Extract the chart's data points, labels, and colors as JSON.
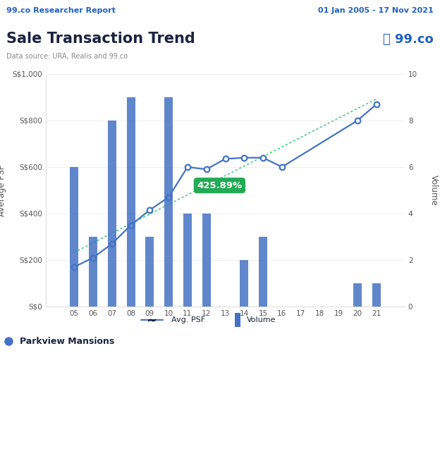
{
  "years": [
    5,
    6,
    7,
    8,
    9,
    10,
    11,
    12,
    13,
    14,
    15,
    16,
    17,
    18,
    19,
    20,
    21
  ],
  "avg_psf": [
    170,
    210,
    270,
    350,
    415,
    470,
    600,
    590,
    635,
    640,
    640,
    600,
    null,
    null,
    null,
    800,
    870
  ],
  "volume": [
    6,
    3,
    8,
    9,
    3,
    9,
    4,
    4,
    0,
    2,
    3,
    0,
    0,
    0,
    0,
    1,
    1
  ],
  "header_bg": "#ddeaf7",
  "header_text_left": "99.co Researcher Report",
  "header_text_right": "01 Jan 2005 - 17 Nov 2021",
  "header_color": "#2060C0",
  "title": "Sale Transaction Trend",
  "subtitle": "Data source: URA, Realis and 99.co",
  "bar_color": "#4472C4",
  "line_color": "#4472C4",
  "dot_color": "#4472C4",
  "trend_color": "#33CC77",
  "annotation_text": "425.89%",
  "annotation_bg": "#22AA55",
  "annotation_text_color": "#ffffff",
  "ylabel_left": "Average PSF",
  "ylabel_right": "Volume",
  "ylim_left": [
    0,
    1000
  ],
  "ylim_right": [
    0,
    10
  ],
  "yticks_left": [
    0,
    200,
    400,
    600,
    800,
    1000
  ],
  "ytick_labels_left": [
    "S$0",
    "S$200",
    "S$400",
    "S$600",
    "S$800",
    "S$1,000"
  ],
  "yticks_right": [
    0,
    2,
    4,
    6,
    8,
    10
  ],
  "bg_color": "#ffffff",
  "plot_bg": "#ffffff",
  "legend_line_label": "Avg. PSF",
  "legend_bar_label": "Volume",
  "property_label": "Parkview Mansions",
  "title_color": "#1a2340",
  "subtitle_color": "#888888",
  "axis_color": "#dddddd",
  "tick_color": "#555555",
  "grid_color": "#eeeeee",
  "footer_color": "#111111"
}
